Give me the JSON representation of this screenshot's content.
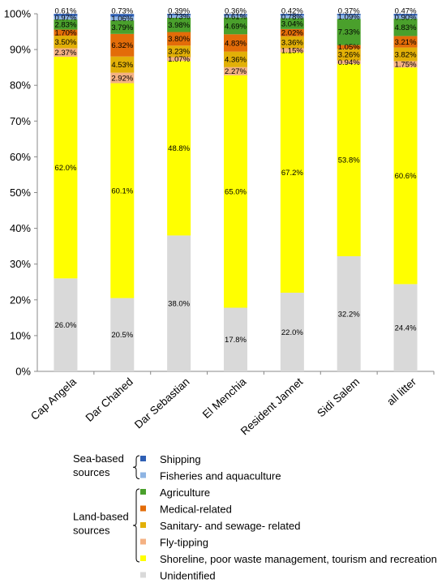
{
  "chart_data": {
    "type": "bar",
    "stacked": true,
    "percent": true,
    "ylim": [
      0,
      100
    ],
    "yticks": [
      "0%",
      "10%",
      "20%",
      "30%",
      "40%",
      "50%",
      "60%",
      "70%",
      "80%",
      "90%",
      "100%"
    ],
    "categories": [
      "Cap Angela",
      "Dar Chahed",
      "Dar Sebastian",
      "El Menchia",
      "Resident Jannet",
      "Sidi Salem",
      "all litter"
    ],
    "series": [
      {
        "name": "Unidentified",
        "color": "#d9d9d9",
        "values": [
          26.0,
          20.5,
          38.0,
          17.8,
          22.0,
          32.2,
          24.4
        ],
        "labels": [
          "26.0%",
          "20.5%",
          "38.0%",
          "17.8%",
          "22.0%",
          "32.2%",
          "24.4%"
        ]
      },
      {
        "name": "Shoreline, poor waste management, tourism and recreation",
        "color": "#ffff00",
        "values": [
          62.0,
          60.1,
          48.8,
          65.0,
          67.2,
          53.8,
          60.6
        ],
        "labels": [
          "62.0%",
          "60.1%",
          "48.8%",
          "65.0%",
          "67.2%",
          "53.8%",
          "60.6%"
        ]
      },
      {
        "name": "Fly-tipping",
        "color": "#f4b183",
        "values": [
          2.37,
          2.92,
          1.07,
          2.27,
          1.15,
          0.94,
          1.75
        ],
        "labels": [
          "2.37%",
          "2.92%",
          "1.07%",
          "2.27%",
          "1.15%",
          "0.94%",
          "1.75%"
        ]
      },
      {
        "name": "Sanitary- and sewage- related",
        "color": "#e2b007",
        "values": [
          3.5,
          4.53,
          3.23,
          4.36,
          3.36,
          3.26,
          3.82
        ],
        "labels": [
          "3.50%",
          "4.53%",
          "3.23%",
          "4.36%",
          "3.36%",
          "3.26%",
          "3.82%"
        ]
      },
      {
        "name": "Medical-related",
        "color": "#e36c09",
        "values": [
          1.7,
          6.32,
          3.8,
          4.83,
          2.02,
          1.05,
          3.21
        ],
        "labels": [
          "1.70%",
          "6.32%",
          "3.80%",
          "4.83%",
          "2.02%",
          "1.05%",
          "3.21%"
        ]
      },
      {
        "name": "Agriculture",
        "color": "#4aa02c",
        "values": [
          2.83,
          3.79,
          3.98,
          4.69,
          3.04,
          7.33,
          4.83
        ],
        "labels": [
          "2.83%",
          "3.79%",
          "3.98%",
          "4.69%",
          "3.04%",
          "7.33%",
          "4.83%"
        ]
      },
      {
        "name": "Fisheries and aquaculture",
        "color": "#8eb4e3",
        "values": [
          0.97,
          1.06,
          0.73,
          0.61,
          0.78,
          1.09,
          0.9
        ],
        "labels": [
          "0.97%",
          "1.06%",
          "0.73%",
          "0.61%",
          "0.78%",
          "1.09%",
          "0.90%"
        ]
      },
      {
        "name": "Shipping",
        "color": "#2f5fb4",
        "values": [
          0.61,
          0.73,
          0.39,
          0.36,
          0.42,
          0.37,
          0.47
        ],
        "labels": [
          "0.61%",
          "0.73%",
          "0.39%",
          "0.36%",
          "0.42%",
          "0.37%",
          "0.47%"
        ]
      }
    ],
    "legend": {
      "position": "bottom",
      "groups": [
        {
          "label": "Sea-based sources",
          "label_lines": [
            "Sea-based",
            "sources"
          ],
          "items": [
            "Shipping",
            "Fisheries and aquaculture"
          ]
        },
        {
          "label": "Land-based sources",
          "label_lines": [
            "Land-based",
            "sources"
          ],
          "items": [
            "Agriculture",
            "Medical-related",
            "Sanitary- and sewage- related",
            "Fly-tipping",
            "Shoreline, poor waste management, tourism and recreation"
          ]
        }
      ],
      "order": [
        "Shipping",
        "Fisheries and aquaculture",
        "Agriculture",
        "Medical-related",
        "Sanitary- and sewage- related",
        "Fly-tipping",
        "Shoreline, poor waste management, tourism and recreation",
        "Unidentified"
      ]
    }
  }
}
